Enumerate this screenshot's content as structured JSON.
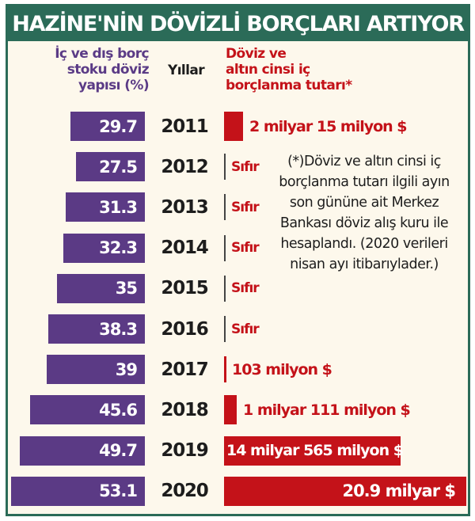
{
  "title": "HAZİNE'NİN DÖVİZLİ BORÇLARI ARTIYOR",
  "columns": {
    "left": [
      "İç ve dış borç",
      "stoku döviz",
      "yapısı (%)"
    ],
    "middle": "Yıllar",
    "right": [
      "Döviz ve",
      "altın cinsi iç",
      "borçlanma tutarı*"
    ]
  },
  "note": "(*)Döviz ve altın cinsi iç borçlanma tutarı ilgili ayın son gününe ait Merkez Bankası döviz alış kuru ile hesaplandı. (2020 verileri nisan ayı itibarıylader.)",
  "colors": {
    "header": "#2b6b58",
    "background": "#fdf8ec",
    "purple_bar": "#5b3a85",
    "red_bar": "#c41219"
  },
  "rows": [
    {
      "year": "2011",
      "pct": "29.7",
      "amount": "2 milyar 15 milyon $"
    },
    {
      "year": "2012",
      "pct": "27.5",
      "amount": "Sıfır"
    },
    {
      "year": "2013",
      "pct": "31.3",
      "amount": "Sıfır"
    },
    {
      "year": "2014",
      "pct": "32.3",
      "amount": "Sıfır"
    },
    {
      "year": "2015",
      "pct": "35",
      "amount": "Sıfır"
    },
    {
      "year": "2016",
      "pct": "38.3",
      "amount": "Sıfır"
    },
    {
      "year": "2017",
      "pct": "39",
      "amount": "103 milyon $"
    },
    {
      "year": "2018",
      "pct": "45.6",
      "amount": "1 milyar 111 milyon $"
    },
    {
      "year": "2019",
      "pct": "49.7",
      "amount": "14 milyar 565 milyon $"
    },
    {
      "year": "2020",
      "pct": "53.1",
      "amount": "20.9 milyar $"
    }
  ],
  "chart_data": {
    "type": "bar",
    "title": "HAZİNE'NİN DÖVİZLİ BORÇLARI ARTIYOR",
    "categories": [
      "2011",
      "2012",
      "2013",
      "2014",
      "2015",
      "2016",
      "2017",
      "2018",
      "2019",
      "2020"
    ],
    "series": [
      {
        "name": "İç ve dış borç stoku döviz yapısı (%)",
        "values": [
          29.7,
          27.5,
          31.3,
          32.3,
          35,
          38.3,
          39,
          45.6,
          49.7,
          53.1
        ]
      },
      {
        "name": "Döviz ve altın cinsi iç borçlanma tutarı* (milyar $)",
        "values": [
          2.015,
          0,
          0,
          0,
          0,
          0,
          0.103,
          1.111,
          14.565,
          20.9
        ]
      }
    ],
    "xlabel": "Yıllar",
    "orientation": "horizontal",
    "legend": "column headers",
    "grid": false
  }
}
